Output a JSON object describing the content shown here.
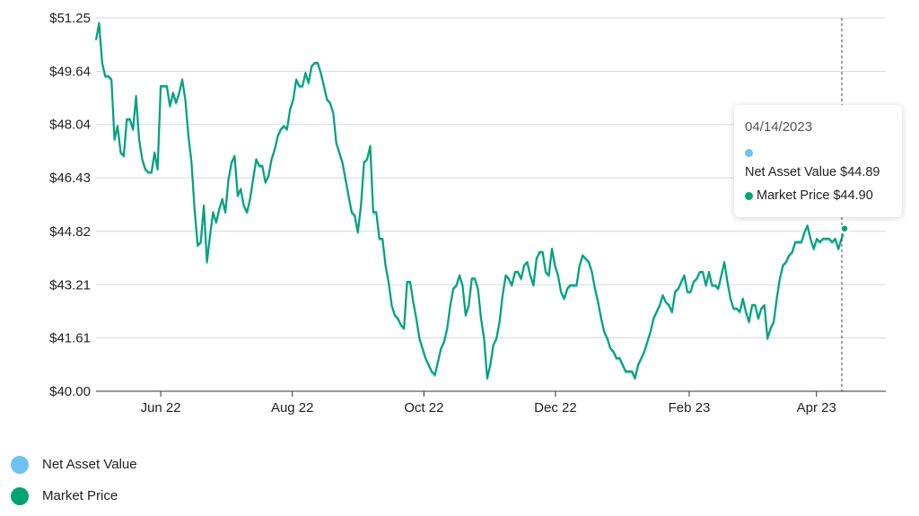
{
  "chart_data": {
    "type": "line",
    "y_ticks": [
      "$51.25",
      "$49.64",
      "$48.04",
      "$46.43",
      "$44.82",
      "$43.21",
      "$41.61",
      "$40.00"
    ],
    "ylim": [
      40.0,
      51.25
    ],
    "x_ticks": [
      "Jun 22",
      "Aug 22",
      "Oct 22",
      "Dec 22",
      "Feb 23",
      "Apr 23"
    ],
    "grid": "horizontal",
    "legend_position": "bottom-left",
    "series": [
      {
        "name": "Net Asset Value",
        "color": "#6ec1f0",
        "x_range": [
          "2022-05-02",
          "2023-04-14"
        ],
        "values": [
          50.6,
          51.1,
          49.9,
          49.5,
          49.5,
          49.4,
          47.6,
          48.0,
          47.2,
          47.1,
          48.2,
          48.2,
          47.9,
          48.9,
          47.6,
          47.0,
          46.7,
          46.6,
          46.6,
          47.2,
          46.7,
          49.2,
          49.2,
          49.2,
          48.6,
          49.0,
          48.7,
          49.0,
          49.4,
          48.8,
          47.7,
          46.9,
          45.5,
          44.4,
          44.5,
          45.6,
          43.9,
          44.7,
          45.4,
          45.1,
          45.5,
          45.8,
          45.4,
          46.4,
          46.9,
          47.1,
          45.9,
          46.1,
          45.6,
          45.4,
          45.8,
          46.4,
          47.0,
          46.8,
          46.8,
          46.3,
          46.5,
          47.0,
          47.3,
          47.7,
          47.9,
          48.0,
          47.9,
          48.5,
          48.8,
          49.4,
          49.2,
          49.2,
          49.6,
          49.3,
          49.8,
          49.9,
          49.9,
          49.6,
          49.2,
          48.8,
          48.7,
          48.4,
          47.5,
          47.2,
          46.9,
          46.4,
          45.9,
          45.4,
          45.3,
          44.8,
          45.6,
          46.9,
          47.0,
          47.4,
          45.4,
          45.4,
          44.6,
          44.6,
          43.8,
          43.3,
          42.6,
          42.3,
          42.2,
          42.0,
          41.9,
          43.3,
          43.3,
          42.7,
          42.2,
          41.6,
          41.3,
          41.0,
          40.8,
          40.6,
          40.5,
          40.9,
          41.3,
          41.5,
          41.9,
          42.6,
          43.1,
          43.2,
          43.5,
          43.2,
          42.3,
          42.6,
          43.4,
          43.4,
          43.1,
          42.2,
          41.6,
          40.4,
          40.8,
          41.4,
          41.6,
          42.1,
          42.9,
          43.5,
          43.4,
          43.2,
          43.6,
          43.6,
          43.4,
          43.8,
          43.9,
          43.5,
          43.2,
          44.0,
          44.2,
          44.2,
          43.6,
          43.5,
          44.3,
          43.8,
          43.5,
          43.0,
          42.8,
          43.1,
          43.2,
          43.2,
          43.2,
          43.8,
          44.1,
          44.0,
          43.9,
          43.6,
          43.1,
          42.7,
          42.2,
          41.8,
          41.6,
          41.3,
          41.2,
          41.0,
          41.0,
          40.8,
          40.6,
          40.6,
          40.6,
          40.4,
          40.8,
          41.0,
          41.2,
          41.5,
          41.8,
          42.2,
          42.4,
          42.6,
          42.9,
          42.7,
          42.6,
          42.4,
          43.0,
          43.1,
          43.3,
          43.5,
          43.0,
          43.0,
          43.3,
          43.4,
          43.6,
          43.6,
          43.2,
          43.6,
          43.2,
          43.2,
          43.1,
          43.5,
          43.9,
          43.3,
          42.8,
          42.5,
          42.5,
          42.4,
          42.8,
          42.4,
          42.1,
          42.6,
          42.6,
          42.2,
          42.5,
          42.6,
          41.6,
          41.9,
          42.1,
          42.8,
          43.4,
          43.8,
          43.9,
          44.1,
          44.2,
          44.5,
          44.5,
          44.5,
          44.8,
          45.0,
          44.6,
          44.3,
          44.6,
          44.5,
          44.6,
          44.6,
          44.6,
          44.5,
          44.6,
          44.3,
          44.6,
          44.89
        ]
      },
      {
        "name": "Market Price",
        "color": "#00a373",
        "x_range": [
          "2022-05-02",
          "2023-04-14"
        ],
        "values": [
          50.6,
          51.1,
          49.9,
          49.5,
          49.5,
          49.4,
          47.6,
          48.0,
          47.2,
          47.1,
          48.2,
          48.2,
          47.9,
          48.9,
          47.6,
          47.0,
          46.7,
          46.6,
          46.6,
          47.2,
          46.7,
          49.2,
          49.2,
          49.2,
          48.6,
          49.0,
          48.7,
          49.0,
          49.4,
          48.8,
          47.7,
          46.9,
          45.5,
          44.4,
          44.5,
          45.6,
          43.9,
          44.7,
          45.4,
          45.1,
          45.5,
          45.8,
          45.4,
          46.4,
          46.9,
          47.1,
          45.9,
          46.1,
          45.6,
          45.4,
          45.8,
          46.4,
          47.0,
          46.8,
          46.8,
          46.3,
          46.5,
          47.0,
          47.3,
          47.7,
          47.9,
          48.0,
          47.9,
          48.5,
          48.8,
          49.4,
          49.2,
          49.2,
          49.6,
          49.3,
          49.8,
          49.9,
          49.9,
          49.6,
          49.2,
          48.8,
          48.7,
          48.4,
          47.5,
          47.2,
          46.9,
          46.4,
          45.9,
          45.4,
          45.3,
          44.8,
          45.6,
          46.9,
          47.0,
          47.4,
          45.4,
          45.4,
          44.6,
          44.6,
          43.8,
          43.3,
          42.6,
          42.3,
          42.2,
          42.0,
          41.9,
          43.3,
          43.3,
          42.7,
          42.2,
          41.6,
          41.3,
          41.0,
          40.8,
          40.6,
          40.5,
          40.9,
          41.3,
          41.5,
          41.9,
          42.6,
          43.1,
          43.2,
          43.5,
          43.2,
          42.3,
          42.6,
          43.4,
          43.4,
          43.1,
          42.2,
          41.6,
          40.4,
          40.8,
          41.4,
          41.6,
          42.1,
          42.9,
          43.5,
          43.4,
          43.2,
          43.6,
          43.6,
          43.4,
          43.8,
          43.9,
          43.5,
          43.2,
          44.0,
          44.2,
          44.2,
          43.6,
          43.5,
          44.3,
          43.8,
          43.5,
          43.0,
          42.8,
          43.1,
          43.2,
          43.2,
          43.2,
          43.8,
          44.1,
          44.0,
          43.9,
          43.6,
          43.1,
          42.7,
          42.2,
          41.8,
          41.6,
          41.3,
          41.2,
          41.0,
          41.0,
          40.8,
          40.6,
          40.6,
          40.6,
          40.4,
          40.8,
          41.0,
          41.2,
          41.5,
          41.8,
          42.2,
          42.4,
          42.6,
          42.9,
          42.7,
          42.6,
          42.4,
          43.0,
          43.1,
          43.3,
          43.5,
          43.0,
          43.0,
          43.3,
          43.4,
          43.6,
          43.6,
          43.2,
          43.6,
          43.2,
          43.2,
          43.1,
          43.5,
          43.9,
          43.3,
          42.8,
          42.5,
          42.5,
          42.4,
          42.8,
          42.4,
          42.1,
          42.6,
          42.6,
          42.2,
          42.5,
          42.6,
          41.6,
          41.9,
          42.1,
          42.8,
          43.4,
          43.8,
          43.9,
          44.1,
          44.2,
          44.5,
          44.5,
          44.5,
          44.8,
          45.0,
          44.6,
          44.3,
          44.6,
          44.5,
          44.6,
          44.6,
          44.6,
          44.5,
          44.6,
          44.3,
          44.6,
          44.9
        ]
      }
    ]
  },
  "tooltip": {
    "date": "04/14/2023",
    "nav_text": "Net Asset Value $44.89",
    "market_text": "Market Price $44.90"
  },
  "legend": [
    {
      "label": "Net Asset Value",
      "color": "#6ec1f0"
    },
    {
      "label": "Market Price",
      "color": "#00a373"
    }
  ]
}
